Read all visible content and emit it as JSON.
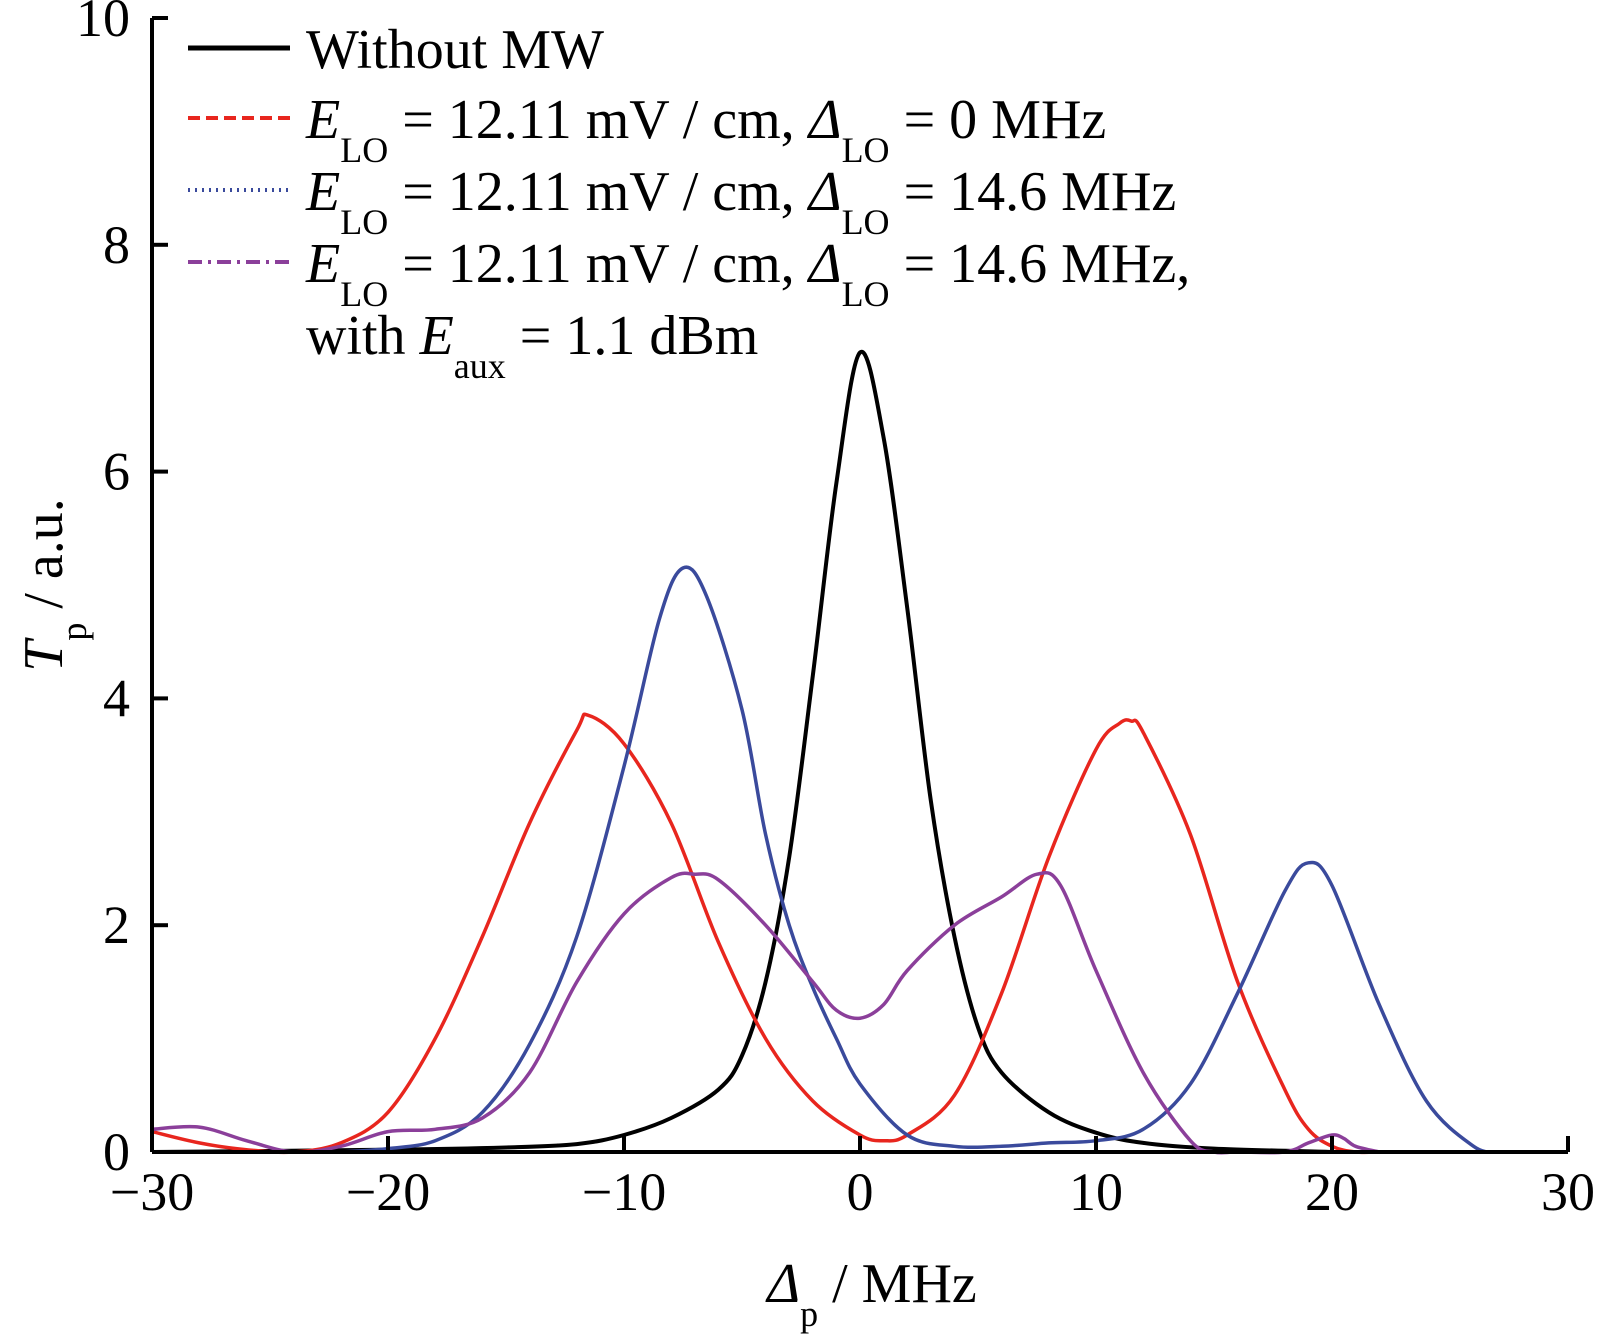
{
  "chart_data": {
    "type": "line",
    "xlim": [
      -30,
      30
    ],
    "ylim": [
      0,
      10
    ],
    "x_ticks": [
      -30,
      -20,
      -10,
      0,
      10,
      20,
      30
    ],
    "y_ticks": [
      0,
      2,
      4,
      6,
      8,
      10
    ],
    "x_tick_labels": [
      "−30",
      "−20",
      "−10",
      "0",
      "10",
      "20",
      "30"
    ],
    "y_tick_labels": [
      "0",
      "2",
      "4",
      "6",
      "8",
      "10"
    ],
    "xlabel": {
      "main": "Δ",
      "sub": "p",
      "rest": " / MHz"
    },
    "ylabel": {
      "main": "T",
      "sub": "p",
      "rest": " / a.u."
    },
    "legend_position": "top-left",
    "series": [
      {
        "color": "#000000",
        "style": "solid",
        "legend": {
          "line1": "Without MW"
        },
        "x": [
          -30,
          -20,
          -15,
          -12,
          -10,
          -8,
          -6,
          -5,
          -4,
          -3,
          -2,
          -1,
          0,
          1,
          2,
          3,
          4,
          5,
          6,
          8,
          10,
          12,
          15,
          20
        ],
        "y": [
          0,
          0.02,
          0.04,
          0.07,
          0.15,
          0.3,
          0.55,
          0.85,
          1.5,
          2.6,
          4.2,
          5.9,
          7.05,
          6.3,
          4.8,
          3.1,
          1.9,
          1.1,
          0.7,
          0.35,
          0.17,
          0.08,
          0.03,
          0
        ]
      },
      {
        "color": "#e8261e",
        "style": "dashed",
        "legend": {
          "line1": [
            {
              "t": "E",
              "i": true
            },
            {
              "t": "LO",
              "s": true
            },
            {
              "t": " = 12.11 mV / cm, "
            },
            {
              "t": "Δ",
              "i": true
            },
            {
              "t": "LO",
              "s": true
            },
            {
              "t": " = 0 MHz"
            }
          ]
        },
        "x": [
          -30,
          -28,
          -26,
          -24,
          -22,
          -20,
          -18,
          -16,
          -14,
          -12,
          -11.5,
          -10,
          -8,
          -6,
          -4,
          -2,
          0,
          1,
          2,
          4,
          6,
          8,
          10,
          11,
          11.5,
          12,
          14,
          16,
          18,
          19,
          20,
          21,
          22
        ],
        "y": [
          0.18,
          0.08,
          0.02,
          0.0,
          0.08,
          0.35,
          1.0,
          1.9,
          2.9,
          3.72,
          3.85,
          3.6,
          2.9,
          1.85,
          1.0,
          0.45,
          0.15,
          0.1,
          0.15,
          0.5,
          1.4,
          2.6,
          3.55,
          3.78,
          3.8,
          3.7,
          2.8,
          1.5,
          0.55,
          0.2,
          0.05,
          0.0,
          0.0
        ]
      },
      {
        "color": "#3a4a9c",
        "style": "dotted",
        "legend": {
          "line1": [
            {
              "t": "E",
              "i": true
            },
            {
              "t": "LO",
              "s": true
            },
            {
              "t": " = 12.11 mV / cm, "
            },
            {
              "t": "Δ",
              "i": true
            },
            {
              "t": "LO",
              "s": true
            },
            {
              "t": " = 14.6 MHz"
            }
          ]
        },
        "x": [
          -22,
          -20,
          -18,
          -16,
          -14,
          -12,
          -10,
          -8.5,
          -7.5,
          -6.5,
          -5,
          -4,
          -3,
          -2,
          -1,
          0,
          2,
          4,
          6,
          8,
          10,
          12,
          14,
          16,
          18,
          19,
          20,
          22,
          24,
          26,
          27
        ],
        "y": [
          0.0,
          0.03,
          0.1,
          0.35,
          0.95,
          1.9,
          3.4,
          4.7,
          5.15,
          4.9,
          3.9,
          2.8,
          2.0,
          1.45,
          1.0,
          0.6,
          0.15,
          0.05,
          0.05,
          0.08,
          0.1,
          0.2,
          0.6,
          1.4,
          2.3,
          2.55,
          2.35,
          1.3,
          0.45,
          0.05,
          0.0
        ]
      },
      {
        "color": "#8b3f9a",
        "style": "dashdot",
        "legend": {
          "line1": [
            {
              "t": "E",
              "i": true
            },
            {
              "t": "LO",
              "s": true
            },
            {
              "t": " = 12.11 mV / cm, "
            },
            {
              "t": "Δ",
              "i": true
            },
            {
              "t": "LO",
              "s": true
            },
            {
              "t": " = 14.6 MHz,"
            }
          ],
          "line2": [
            {
              "t": "with "
            },
            {
              "t": "E",
              "i": true
            },
            {
              "t": "aux",
              "s": true
            },
            {
              "t": " = 1.1 dBm"
            }
          ]
        },
        "x": [
          -30,
          -28,
          -26,
          -24,
          -22,
          -20,
          -18,
          -16,
          -14,
          -12,
          -10,
          -8,
          -7,
          -6,
          -4,
          -2,
          -1,
          0,
          1,
          2,
          4,
          6,
          7.5,
          8.5,
          10,
          12,
          14,
          15,
          16,
          18,
          19,
          20,
          20.5,
          21,
          22
        ],
        "y": [
          0.2,
          0.22,
          0.1,
          0.0,
          0.05,
          0.18,
          0.2,
          0.3,
          0.7,
          1.5,
          2.1,
          2.42,
          2.45,
          2.4,
          2.0,
          1.5,
          1.25,
          1.18,
          1.3,
          1.6,
          2.0,
          2.25,
          2.45,
          2.35,
          1.6,
          0.7,
          0.1,
          0.0,
          0.0,
          0.0,
          0.08,
          0.15,
          0.12,
          0.05,
          0.0
        ]
      }
    ]
  }
}
